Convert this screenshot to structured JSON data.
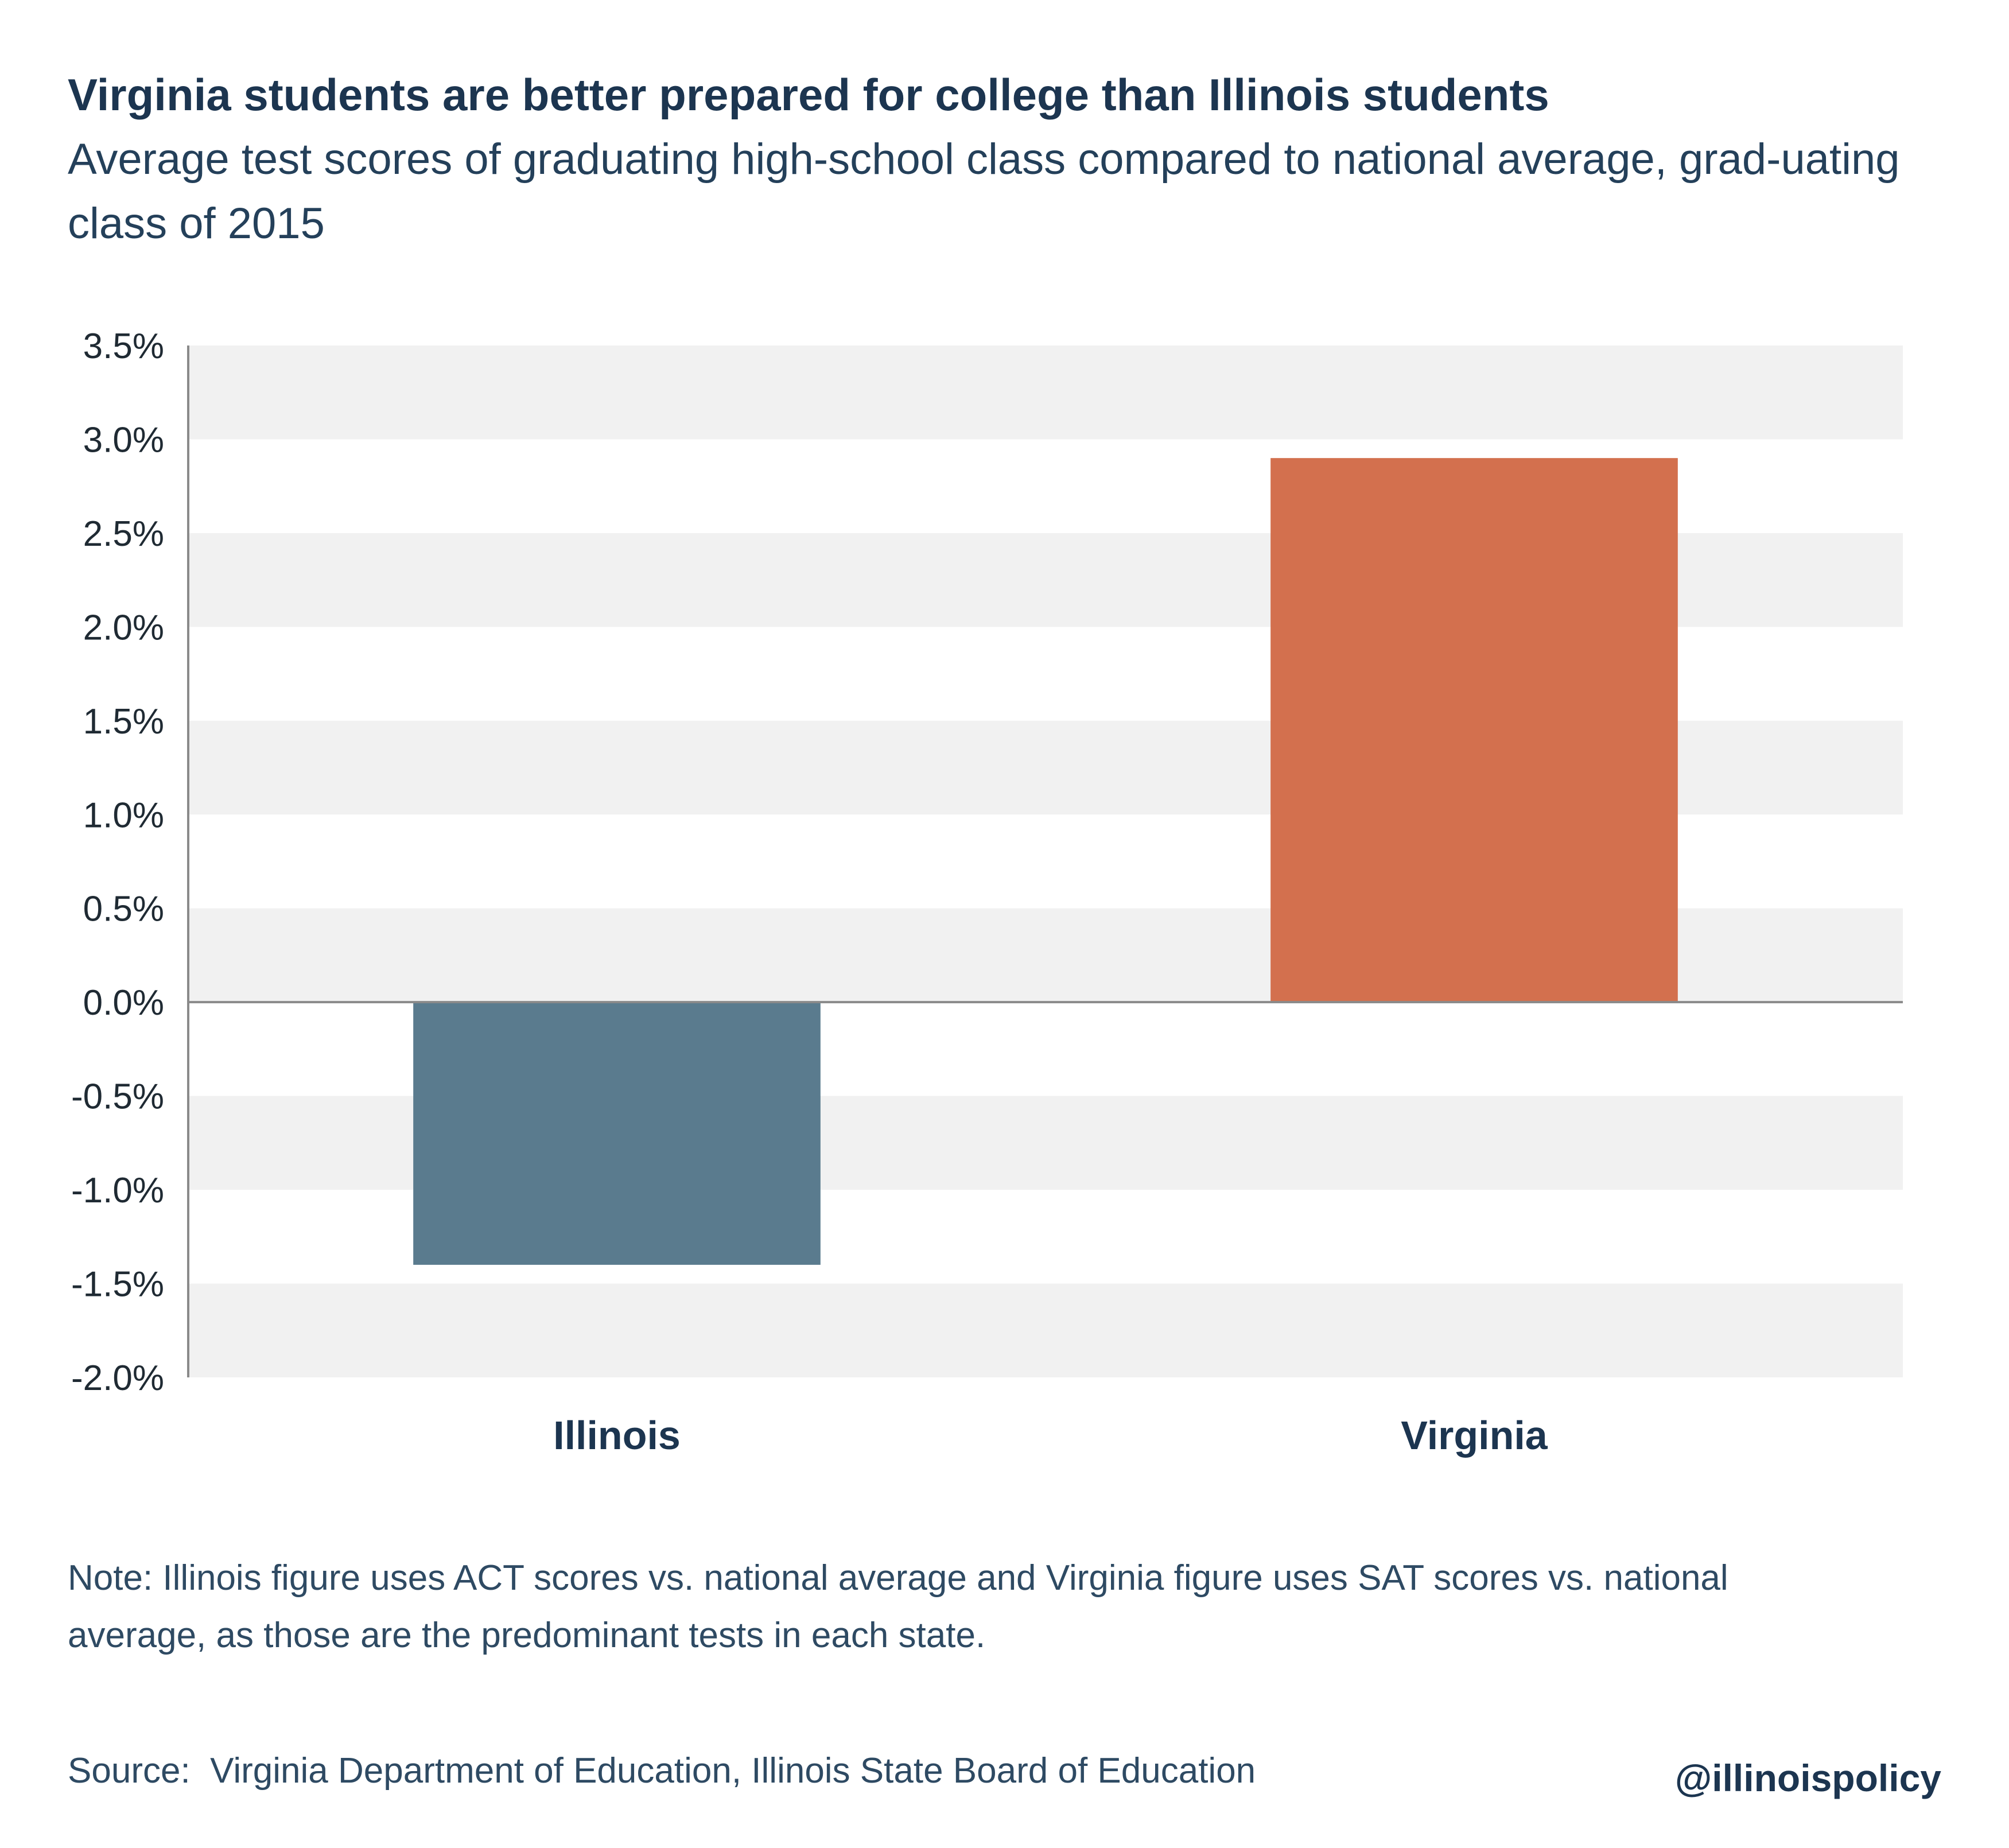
{
  "title": "Virginia students are better prepared for college than Illinois students",
  "subtitle": "Average test scores of graduating high-school class compared to national average, grad-uating class of 2015",
  "note": "Note: Illinois figure uses ACT scores vs. national average and Virginia figure uses SAT scores vs. national average, as those are the predominant tests in each state.",
  "source": "Source:  Virginia Department of Education, Illinois State Board of Education",
  "handle": "@illinoispolicy",
  "colors": {
    "illinois": "#5a7b8e",
    "virginia": "#d3704e",
    "band": "#f1f1f1",
    "axis": "#8a8a8a"
  },
  "chart_data": {
    "type": "bar",
    "categories": [
      "Illinois",
      "Virginia"
    ],
    "values": [
      -1.4,
      2.9
    ],
    "ylim": [
      -2.0,
      3.5
    ],
    "yticks": [
      3.5,
      3.0,
      2.5,
      2.0,
      1.5,
      1.0,
      0.5,
      0.0,
      -0.5,
      -1.0,
      -1.5,
      -2.0
    ],
    "ytick_labels": [
      "3.5%",
      "3.0%",
      "2.5%",
      "2.0%",
      "1.5%",
      "1.0%",
      "0.5%",
      "0.0%",
      "-0.5%",
      "-1.0%",
      "-1.5%",
      "-2.0%"
    ],
    "xlabel": "",
    "ylabel": "",
    "grid": "alternating horizontal bands",
    "legend": "none"
  }
}
